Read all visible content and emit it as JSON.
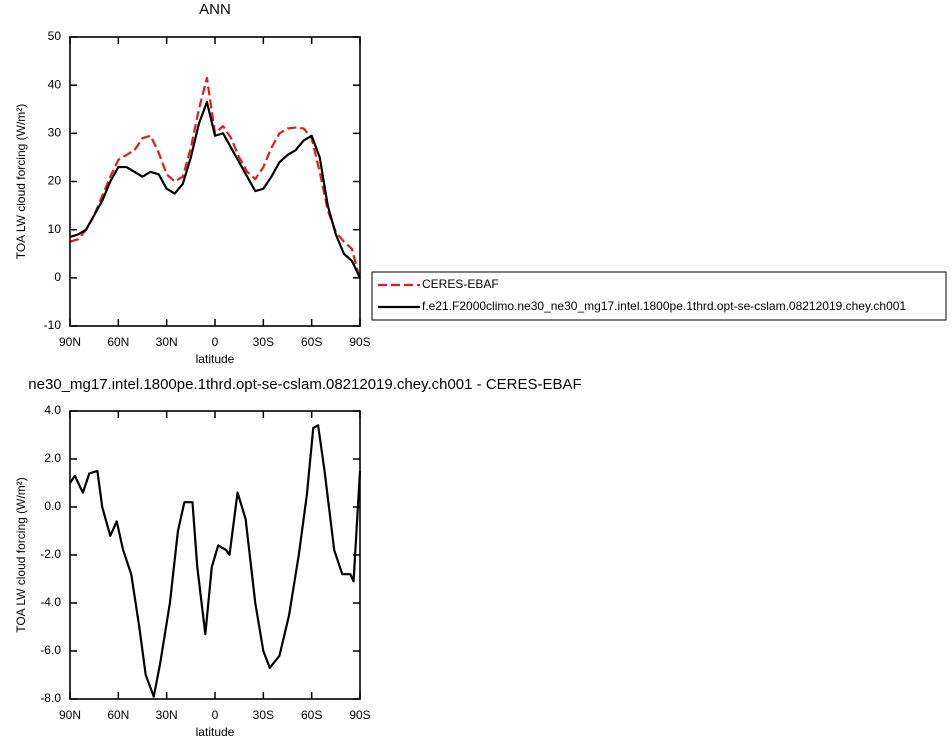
{
  "chart_data": [
    {
      "type": "line",
      "title": "ANN",
      "x_label": "latitude",
      "y_label": "TOA LW cloud forcing (W/m²)",
      "x": [
        90,
        85,
        80,
        75,
        70,
        65,
        60,
        55,
        50,
        45,
        40,
        35,
        30,
        25,
        20,
        15,
        10,
        5,
        0,
        -5,
        -10,
        -15,
        -20,
        -25,
        -30,
        -35,
        -40,
        -45,
        -50,
        -55,
        -60,
        -65,
        -70,
        -75,
        -80,
        -85,
        -90
      ],
      "series": [
        {
          "name": "CERES-EBAF",
          "color": "#e41a1c",
          "dashed": true,
          "values": [
            7.5,
            8,
            10,
            13,
            17,
            21,
            24.5,
            25.5,
            26.5,
            29,
            29.5,
            26,
            21.5,
            20,
            21,
            27,
            35,
            41.5,
            30,
            31.5,
            29,
            25,
            22,
            20.5,
            23,
            27,
            30,
            31,
            31.2,
            31,
            29,
            22,
            14,
            9.5,
            7.5,
            6,
            -0.5
          ]
        },
        {
          "name": "f.e21.F2000climo.ne30_ne30_mg17.intel.1800pe.1thrd.opt-se-cslam.08212019.chey.ch001",
          "color": "#000000",
          "dashed": false,
          "values": [
            8.5,
            9,
            10,
            13,
            16,
            20,
            23,
            23,
            22,
            21,
            22,
            21.5,
            18.5,
            17.5,
            19.5,
            25,
            32,
            36.5,
            29.5,
            30,
            27,
            24,
            21,
            18,
            18.5,
            21,
            24,
            25.5,
            26.5,
            28.5,
            29.5,
            25,
            15,
            9,
            5,
            3.5,
            0
          ]
        }
      ],
      "xlim": [
        90,
        -90
      ],
      "xticks": [
        {
          "value": 90,
          "label": "90N"
        },
        {
          "value": 60,
          "label": "60N"
        },
        {
          "value": 30,
          "label": "30N"
        },
        0,
        {
          "value": -30,
          "label": "30S"
        },
        {
          "value": -60,
          "label": "60S"
        },
        {
          "value": -90,
          "label": "90S"
        }
      ],
      "ylim": [
        -10,
        50
      ],
      "yticks": [
        -10,
        0,
        10,
        20,
        30,
        40,
        50
      ],
      "legend": "right"
    },
    {
      "type": "line",
      "title": "ne30_mg17.intel.1800pe.1thrd.opt-se-cslam.08212019.chey.ch001 - CERES-EBAF",
      "x_label": "latitude",
      "y_label": "TOA LW cloud forcing (W/m²)",
      "x": [
        90,
        87,
        82,
        78,
        73,
        70,
        65,
        61,
        57,
        52,
        47,
        43,
        38,
        34,
        28,
        23,
        19,
        14,
        11,
        6,
        2,
        -2,
        -7,
        -9,
        -14,
        -19,
        -25,
        -30,
        -34,
        -40,
        -46,
        -52,
        -57,
        -61,
        -64,
        -68,
        -74,
        -79,
        -84,
        -86,
        -90
      ],
      "values": [
        1.0,
        1.3,
        0.6,
        1.4,
        1.5,
        0,
        -1.2,
        -0.6,
        -1.8,
        -2.8,
        -5.0,
        -7.0,
        -7.9,
        -6.5,
        -4.0,
        -1.0,
        0.2,
        0.2,
        -2.5,
        -5.3,
        -2.5,
        -1.6,
        -1.8,
        -2.0,
        0.6,
        -0.5,
        -4.0,
        -6.0,
        -6.7,
        -6.2,
        -4.5,
        -2.0,
        0.5,
        3.3,
        3.4,
        1.5,
        -1.8,
        -2.8,
        -2.8,
        -3.1,
        1.5
      ],
      "color": "#000000",
      "xlim": [
        90,
        -90
      ],
      "xticks": [
        {
          "value": 90,
          "label": "90N"
        },
        {
          "value": 60,
          "label": "60N"
        },
        {
          "value": 30,
          "label": "30N"
        },
        0,
        {
          "value": -30,
          "label": "30S"
        },
        {
          "value": -60,
          "label": "60S"
        },
        {
          "value": -90,
          "label": "90S"
        }
      ],
      "ylim": [
        -8,
        4
      ],
      "yticks": [
        {
          "value": -8,
          "label": "-8.0"
        },
        {
          "value": -6,
          "label": "-6.0"
        },
        {
          "value": -4,
          "label": "-4.0"
        },
        {
          "value": -2,
          "label": "-2.0"
        },
        {
          "value": 0,
          "label": "0.0"
        },
        {
          "value": 2,
          "label": "2.0"
        },
        {
          "value": 4,
          "label": "4.0"
        }
      ]
    }
  ]
}
